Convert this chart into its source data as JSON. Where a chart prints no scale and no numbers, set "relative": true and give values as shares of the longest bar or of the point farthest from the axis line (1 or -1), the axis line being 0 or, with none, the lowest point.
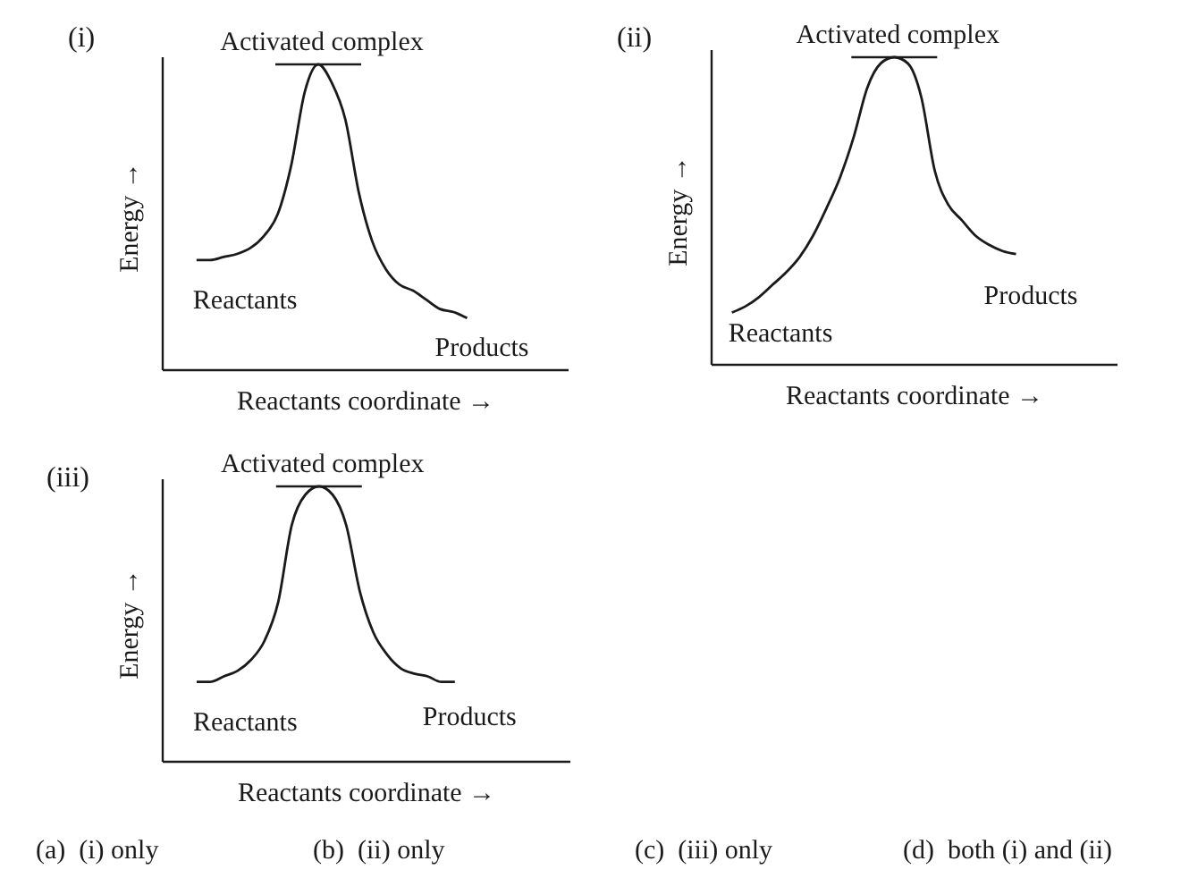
{
  "chart_data": [
    {
      "type": "line",
      "title": "(i)",
      "xlabel": "Reactants coordinate →",
      "ylabel": "Energy →",
      "relative": true,
      "color": "#1a1a1a",
      "categories": [
        null,
        null,
        null,
        null,
        null,
        null,
        null,
        null,
        null,
        null,
        null,
        null,
        null,
        null,
        null,
        null,
        null,
        null,
        null,
        null,
        null,
        null,
        null,
        null,
        null,
        null,
        null,
        null,
        null,
        null
      ],
      "values": [
        null,
        null,
        0.36,
        0.36,
        0.37,
        0.38,
        0.4,
        0.44,
        0.51,
        0.67,
        0.91,
        1,
        0.94,
        0.82,
        0.58,
        0.42,
        0.33,
        0.28,
        0.26,
        0.23,
        0.2,
        0.19,
        0.17,
        null,
        null,
        null,
        null,
        null,
        null,
        null
      ],
      "annotations": [
        "Activated complex",
        "Reactants",
        "Products"
      ]
    },
    {
      "type": "line",
      "title": "(ii)",
      "xlabel": "Reactants coordinate →",
      "ylabel": "Energy →",
      "relative": true,
      "color": "#1a1a1a",
      "categories": [
        null,
        null,
        null,
        null,
        null,
        null,
        null,
        null,
        null,
        null,
        null,
        null,
        null,
        null,
        null,
        null,
        null,
        null,
        null,
        null,
        null,
        null,
        null,
        null,
        null,
        null,
        null,
        null,
        null,
        null
      ],
      "values": [
        null,
        0.17,
        0.19,
        0.22,
        0.26,
        0.3,
        0.35,
        0.42,
        0.51,
        0.61,
        0.74,
        0.9,
        0.98,
        1,
        0.98,
        0.87,
        0.63,
        0.52,
        0.47,
        0.42,
        0.39,
        0.37,
        0.36,
        null,
        null,
        null,
        null,
        null,
        null,
        null
      ],
      "annotations": [
        "Activated complex",
        "Reactants",
        "Products"
      ]
    },
    {
      "type": "line",
      "title": "(iii)",
      "xlabel": "Reactants coordinate →",
      "ylabel": "Energy →",
      "relative": true,
      "color": "#1a1a1a",
      "categories": [
        null,
        null,
        null,
        null,
        null,
        null,
        null,
        null,
        null,
        null,
        null,
        null,
        null,
        null,
        null,
        null,
        null,
        null,
        null,
        null,
        null,
        null,
        null,
        null,
        null,
        null,
        null,
        null,
        null,
        null
      ],
      "values": [
        null,
        null,
        0.29,
        0.29,
        0.31,
        0.33,
        0.37,
        0.44,
        0.58,
        0.86,
        0.97,
        1,
        0.97,
        0.86,
        0.62,
        0.47,
        0.39,
        0.34,
        0.32,
        0.31,
        0.29,
        0.29,
        null,
        null,
        null,
        null,
        null,
        null,
        null,
        null
      ],
      "annotations": [
        "Activated complex",
        "Reactants",
        "Products"
      ]
    },
    {
      "type": "other",
      "annotations": [
        "(a)  (i) only",
        "(b)  (ii) only",
        "(c)  (iii) only",
        "(d)  both (i) and (ii)"
      ]
    }
  ]
}
